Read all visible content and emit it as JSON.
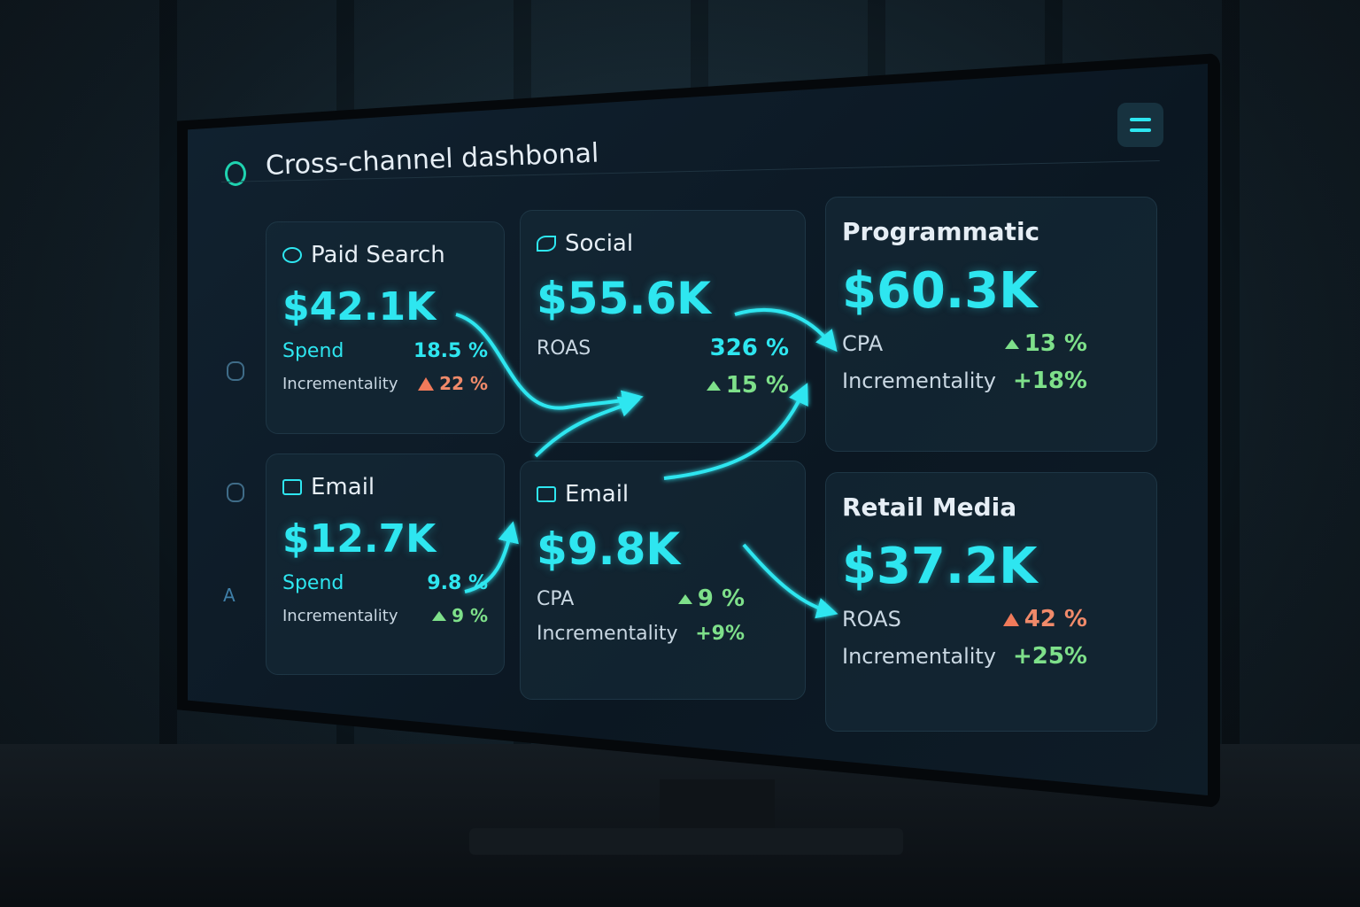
{
  "header": {
    "title": "Cross-channel dashbonal"
  },
  "sidebar": {
    "label": "A"
  },
  "cards": [
    {
      "channel": "Paid Search",
      "value": "$42.1K",
      "metrics": [
        {
          "label": "Spend",
          "change": "18.5 %"
        },
        {
          "label": "Incrementality",
          "change": "22 %"
        }
      ]
    },
    {
      "channel": "Social",
      "value": "$55.6K",
      "metrics": [
        {
          "label": "ROAS",
          "change": "326 %"
        },
        {
          "change": "15 %"
        }
      ]
    },
    {
      "channel": "Programmatic",
      "value": "$60.3K",
      "metrics": [
        {
          "label": "CPA",
          "change": "13 %"
        },
        {
          "label": "Incrementality",
          "change": "+18%"
        }
      ]
    },
    {
      "channel": "Email",
      "value": "$12.7K",
      "metrics": [
        {
          "label": "Spend",
          "change": "9.8 %"
        },
        {
          "label": "Incrementality",
          "change": "9 %"
        }
      ]
    },
    {
      "channel": "Email",
      "value": "$9.8K",
      "metrics": [
        {
          "label": "CPA",
          "change": "9 %"
        },
        {
          "label": "Incrementality",
          "change": "+9%"
        }
      ]
    },
    {
      "channel": "Retail Media",
      "value": "$37.2K",
      "metrics": [
        {
          "label": "ROAS",
          "change": "42 %"
        },
        {
          "label": "Incrementality",
          "change": "+25%"
        }
      ]
    }
  ]
}
